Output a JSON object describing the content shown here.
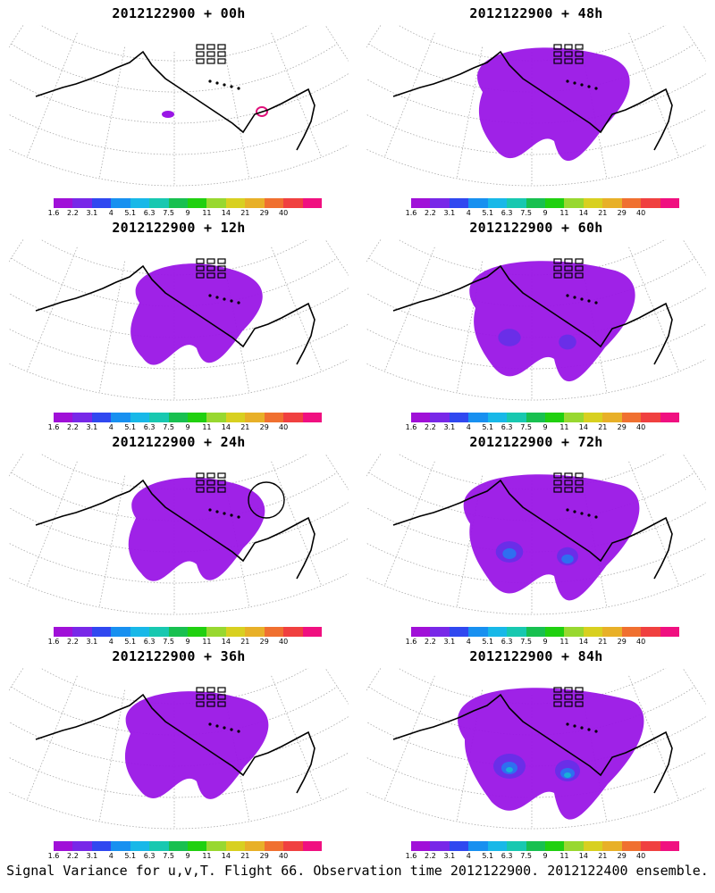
{
  "legend": {
    "labels": [
      "1.6",
      "2.2",
      "3.1",
      "4",
      "5.1",
      "6.3",
      "7.5",
      "9",
      "11",
      "14",
      "21",
      "29",
      "40"
    ],
    "colors": [
      "#a010d8",
      "#7828e8",
      "#3048f0",
      "#1890f0",
      "#18b8e8",
      "#18c8b0",
      "#18c050",
      "#20d010",
      "#98d830",
      "#d8d020",
      "#e8b028",
      "#f07030",
      "#f04040",
      "#f01080"
    ]
  },
  "palette": {
    "field": "#9a16e6",
    "field_mid": "#6a2ee8",
    "field_high": "#2f6ef0",
    "field_peak": "#18b0d8",
    "contour": "#e0107a"
  },
  "panels": [
    {
      "id": "00h",
      "title": "2012122900 + 00h",
      "spread": 0.0
    },
    {
      "id": "48h",
      "title": "2012122900 + 48h",
      "spread": 0.5
    },
    {
      "id": "12h",
      "title": "2012122900 + 12h",
      "spread": 0.1
    },
    {
      "id": "60h",
      "title": "2012122900 + 60h",
      "spread": 0.7
    },
    {
      "id": "24h",
      "title": "2012122900 + 24h",
      "spread": 0.2
    },
    {
      "id": "72h",
      "title": "2012122900 + 72h",
      "spread": 0.85
    },
    {
      "id": "36h",
      "title": "2012122900 + 36h",
      "spread": 0.35
    },
    {
      "id": "84h",
      "title": "2012122900 + 84h",
      "spread": 1.0
    }
  ],
  "caption": "Signal Variance for u,v,T. Flight 66. Observation time 2012122900. 2012122400 ensemble."
}
